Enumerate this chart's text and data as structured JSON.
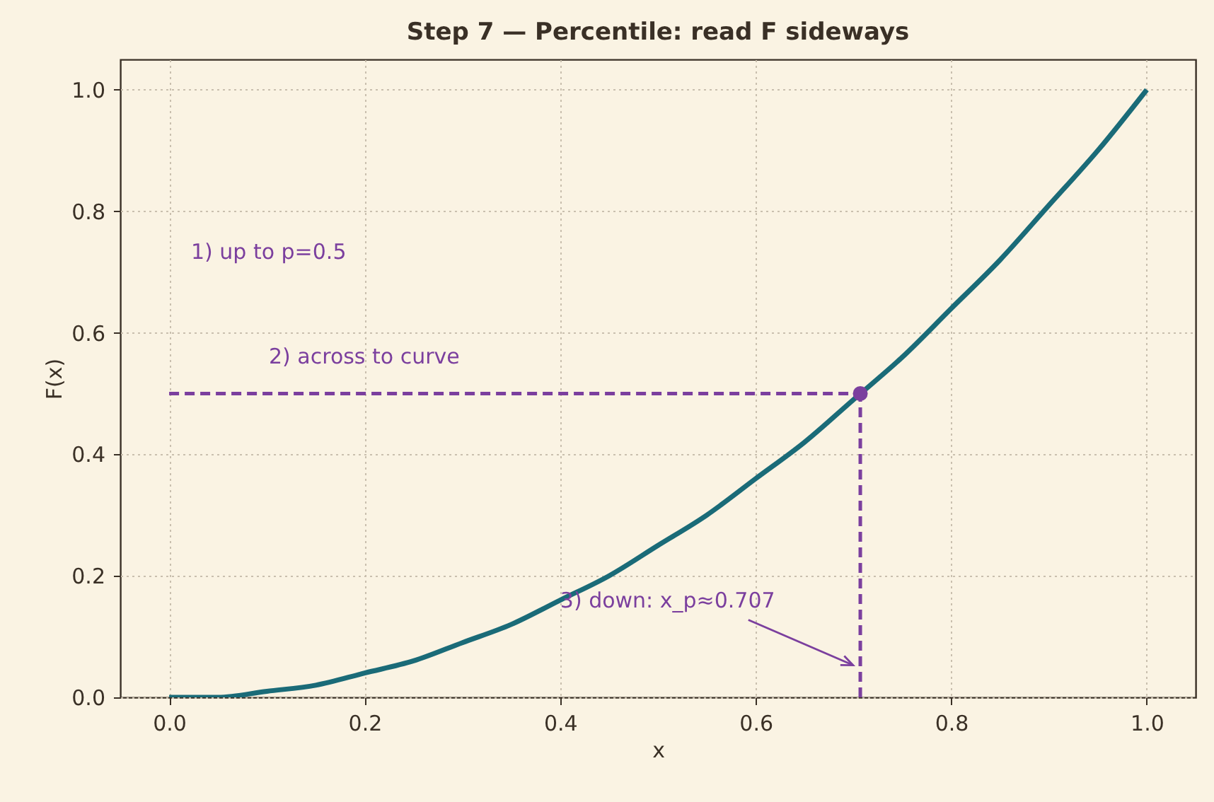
{
  "chart_data": {
    "type": "line",
    "title": "Step 7 — Percentile: read F sideways",
    "xlabel": "x",
    "ylabel": "F(x)",
    "xlim": [
      -0.05,
      1.05
    ],
    "ylim": [
      0,
      1.05
    ],
    "xticks": [
      {
        "value": 0,
        "label": "0.0"
      },
      0.2,
      0.4,
      0.6,
      0.8,
      {
        "value": 1,
        "label": "1.0"
      }
    ],
    "yticks": [
      {
        "value": 0,
        "label": "0.0"
      },
      0.2,
      0.4,
      0.6,
      0.8,
      {
        "value": 1,
        "label": "1.0"
      }
    ],
    "grid": true,
    "series": [
      {
        "type": "line",
        "color": "#1a6b78",
        "line_style": "solid",
        "x": [
          0,
          0.05,
          0.1,
          0.15,
          0.2,
          0.25,
          0.3,
          0.35,
          0.4,
          0.45,
          0.5,
          0.55,
          0.6,
          0.65,
          0.7,
          0.75,
          0.8,
          0.85,
          0.9,
          0.95,
          1.0
        ],
        "values": [
          0,
          0,
          0.01,
          0.02,
          0.04,
          0.06,
          0.09,
          0.12,
          0.16,
          0.2,
          0.25,
          0.3,
          0.36,
          0.42,
          0.49,
          0.56,
          0.64,
          0.72,
          0.81,
          0.9,
          1.0
        ]
      },
      {
        "type": "line",
        "color": "#7b3f9e",
        "line_style": "dashed",
        "x": [
          0,
          0.707
        ],
        "values": [
          0.5,
          0.5
        ]
      },
      {
        "type": "line",
        "color": "#7b3f9e",
        "line_style": "dashed",
        "x": [
          0.707,
          0.707
        ],
        "values": [
          0,
          0.5
        ]
      },
      {
        "type": "scatter",
        "color": "#7b3f9e",
        "marker": "circle",
        "x": [
          0.707
        ],
        "values": [
          0.5
        ]
      }
    ],
    "annotations": [
      "1) up to p=0.5",
      "2) across to curve",
      {
        "text": "3) down: x_p≈0.707",
        "x": 0.4,
        "y": 0.16
      }
    ]
  }
}
